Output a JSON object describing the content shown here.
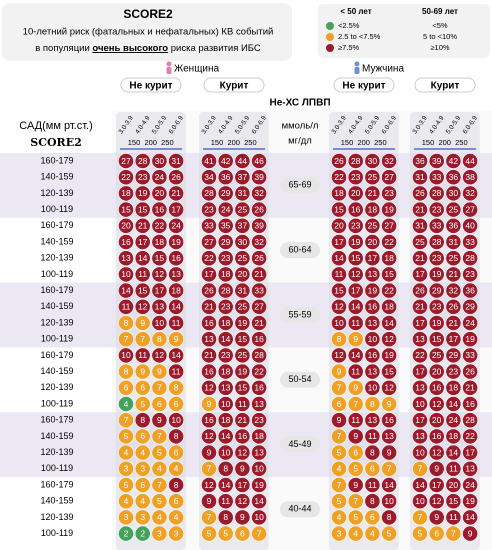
{
  "header": {
    "title": "SCORE2",
    "line1": "10-летний риск (фатальных и нефатальных) КВ событий",
    "line2": [
      "в популяции",
      "очень высокого",
      "риска развития ИБС"
    ]
  },
  "legend": {
    "colors": [
      "#43a35c",
      "#efa127",
      "#9b1b2c"
    ],
    "columns": [
      {
        "title": "< 50 лет",
        "cuts": [
          2.5,
          7.5
        ],
        "items": [
          "<2.5%",
          "2.5 to <7.5%",
          "≥7.5%"
        ]
      },
      {
        "title": "50-69 лет",
        "cuts": [
          5,
          10
        ],
        "items": [
          "<5%",
          "5 to <10%",
          "≥10%"
        ]
      }
    ]
  },
  "genders": [
    {
      "label": "Женщина",
      "smoking": [
        "Не курит",
        "Курит"
      ]
    },
    {
      "label": "Мужчина",
      "smoking": [
        "Не курит",
        "Курит"
      ]
    }
  ],
  "lipid_title": "Не-ХС ЛПВП",
  "units": [
    "ммоль/л",
    "мг/дл"
  ],
  "sbp_title": "САД(мм рт.ст.)",
  "score_label": "SCORE2",
  "lipid_bins": [
    "3.0-3.9",
    "4.0-4.9",
    "5.0-5.9",
    "6.0-6.9"
  ],
  "mgdl_ticks": [
    150,
    200,
    250
  ],
  "sbp_rows": [
    "160-179",
    "140-159",
    "120-139",
    "100-119"
  ],
  "age_groups": [
    {
      "label": "65-69",
      "rows": [
        [
          27,
          28,
          30,
          31,
          41,
          42,
          44,
          46,
          26,
          28,
          30,
          32,
          36,
          39,
          42,
          44
        ],
        [
          22,
          23,
          24,
          26,
          34,
          36,
          37,
          39,
          22,
          23,
          25,
          27,
          31,
          33,
          36,
          38
        ],
        [
          18,
          19,
          20,
          21,
          28,
          29,
          31,
          32,
          18,
          20,
          21,
          23,
          26,
          28,
          30,
          32
        ],
        [
          15,
          15,
          16,
          17,
          23,
          24,
          25,
          26,
          15,
          16,
          18,
          19,
          21,
          23,
          25,
          27
        ]
      ]
    },
    {
      "label": "60-64",
      "rows": [
        [
          20,
          21,
          22,
          24,
          33,
          35,
          37,
          39,
          20,
          23,
          25,
          27,
          31,
          33,
          36,
          40
        ],
        [
          16,
          17,
          18,
          19,
          27,
          29,
          30,
          32,
          17,
          19,
          20,
          22,
          25,
          28,
          31,
          33
        ],
        [
          13,
          14,
          15,
          16,
          22,
          23,
          25,
          26,
          14,
          15,
          17,
          18,
          21,
          23,
          25,
          28
        ],
        [
          10,
          11,
          12,
          13,
          17,
          18,
          20,
          21,
          11,
          12,
          13,
          15,
          17,
          19,
          21,
          23
        ]
      ]
    },
    {
      "label": "55-59",
      "rows": [
        [
          14,
          15,
          17,
          18,
          26,
          28,
          31,
          33,
          15,
          17,
          19,
          22,
          26,
          29,
          32,
          36
        ],
        [
          11,
          12,
          13,
          14,
          21,
          23,
          25,
          27,
          12,
          14,
          16,
          18,
          21,
          23,
          26,
          29
        ],
        [
          8,
          9,
          10,
          11,
          16,
          18,
          19,
          21,
          10,
          11,
          13,
          14,
          17,
          19,
          21,
          24
        ],
        [
          7,
          7,
          8,
          9,
          13,
          14,
          15,
          16,
          8,
          9,
          10,
          12,
          13,
          15,
          17,
          19
        ]
      ]
    },
    {
      "label": "50-54",
      "rows": [
        [
          10,
          11,
          12,
          14,
          21,
          23,
          25,
          28,
          12,
          14,
          16,
          19,
          22,
          25,
          29,
          33
        ],
        [
          8,
          9,
          9,
          11,
          16,
          18,
          19,
          22,
          9,
          11,
          13,
          15,
          17,
          20,
          23,
          26
        ],
        [
          6,
          6,
          7,
          8,
          12,
          13,
          15,
          16,
          7,
          9,
          10,
          12,
          13,
          16,
          18,
          21
        ],
        [
          4,
          5,
          6,
          6,
          9,
          10,
          11,
          13,
          6,
          7,
          8,
          9,
          10,
          12,
          14,
          16
        ]
      ]
    },
    {
      "label": "45-49",
      "rows": [
        [
          7,
          8,
          9,
          10,
          16,
          18,
          21,
          23,
          9,
          11,
          13,
          16,
          17,
          20,
          24,
          28
        ],
        [
          5,
          6,
          7,
          8,
          12,
          14,
          16,
          18,
          7,
          9,
          11,
          13,
          13,
          16,
          18,
          22
        ],
        [
          4,
          4,
          5,
          6,
          9,
          10,
          12,
          13,
          5,
          6,
          8,
          9,
          10,
          12,
          14,
          17
        ],
        [
          3,
          3,
          4,
          4,
          7,
          8,
          9,
          10,
          4,
          5,
          6,
          7,
          7,
          9,
          11,
          13
        ]
      ]
    },
    {
      "label": "40-44",
      "rows": [
        [
          5,
          6,
          7,
          8,
          12,
          14,
          17,
          19,
          7,
          9,
          11,
          14,
          14,
          17,
          20,
          24
        ],
        [
          4,
          4,
          5,
          6,
          9,
          11,
          12,
          14,
          5,
          7,
          8,
          10,
          10,
          12,
          15,
          19
        ],
        [
          3,
          3,
          4,
          4,
          7,
          8,
          9,
          10,
          4,
          5,
          6,
          8,
          7,
          9,
          11,
          14
        ],
        [
          2,
          2,
          3,
          3,
          5,
          5,
          6,
          7,
          3,
          4,
          4,
          5,
          5,
          6,
          7,
          9
        ]
      ]
    }
  ]
}
